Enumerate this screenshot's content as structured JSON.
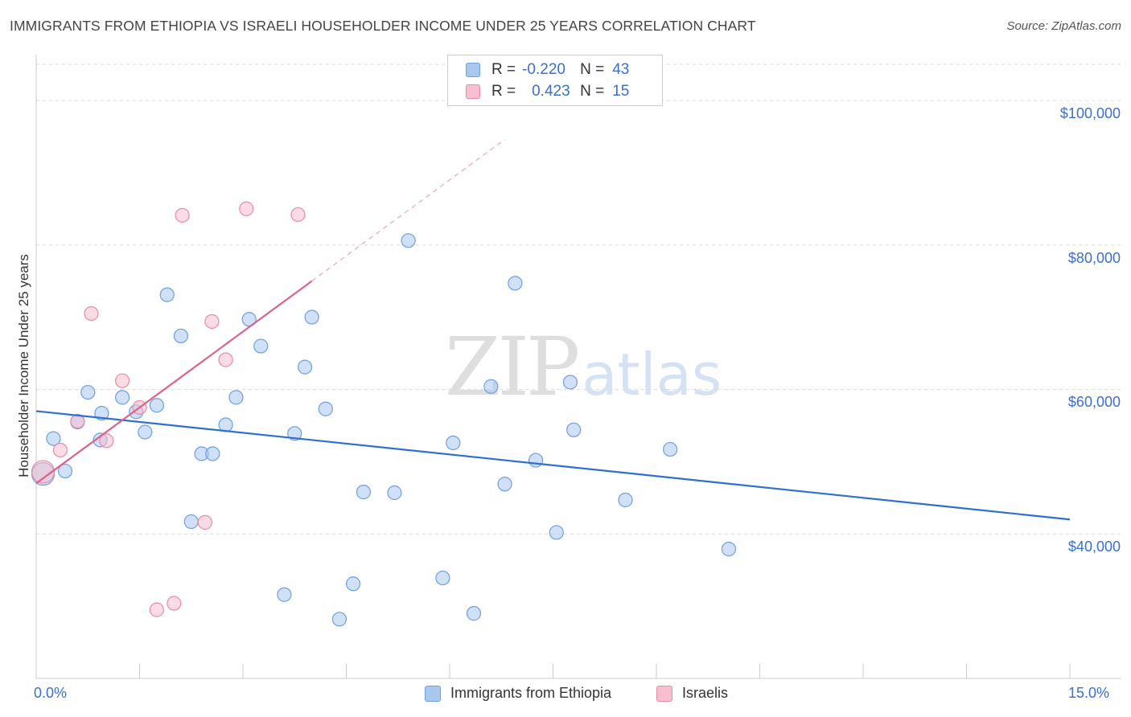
{
  "header": {
    "title": "IMMIGRANTS FROM ETHIOPIA VS ISRAELI HOUSEHOLDER INCOME UNDER 25 YEARS CORRELATION CHART",
    "source": "Source: ZipAtlas.com"
  },
  "watermark": {
    "zip": "ZIP",
    "atlas": "atlas"
  },
  "legend": {
    "rows": [
      {
        "r_label": "R =",
        "r_value": "-0.220",
        "n_label": "N =",
        "n_value": "43",
        "color": "#a9c8f0",
        "border": "#6f9ee0"
      },
      {
        "r_label": "R =",
        "r_value": "0.423",
        "n_label": "N =",
        "n_value": "15",
        "color": "#f7bfd0",
        "border": "#e98aa8"
      }
    ]
  },
  "chart_data": {
    "type": "scatter",
    "ylabel": "Householder Income Under 25 years",
    "xlim": [
      0,
      15
    ],
    "ylim": [
      20000,
      105000
    ],
    "x_tick_labels": [
      "0.0%",
      "15.0%"
    ],
    "y_ticks": [
      {
        "value": 40000,
        "label": "$40,000"
      },
      {
        "value": 60000,
        "label": "$60,000"
      },
      {
        "value": 80000,
        "label": "$80,000"
      },
      {
        "value": 100000,
        "label": "$100,000"
      }
    ],
    "grid": true,
    "legend_position": "top-center",
    "series": [
      {
        "name": "Immigrants from Ethiopia",
        "color": "#a9c8f0",
        "stroke": "#6f9ee0",
        "trend_color": "#2e6fd1",
        "trend": {
          "x0": 0.0,
          "y0": 57000,
          "x1": 15.0,
          "y1": 42000
        },
        "points": [
          [
            0.25,
            53200
          ],
          [
            0.42,
            48700
          ],
          [
            0.6,
            55500
          ],
          [
            0.75,
            59600
          ],
          [
            0.95,
            56700
          ],
          [
            0.93,
            53000
          ],
          [
            1.25,
            58900
          ],
          [
            1.45,
            56900
          ],
          [
            1.58,
            54100
          ],
          [
            1.75,
            57800
          ],
          [
            1.9,
            73100
          ],
          [
            2.1,
            67400
          ],
          [
            2.25,
            41700
          ],
          [
            2.4,
            51100
          ],
          [
            2.56,
            51100
          ],
          [
            2.75,
            55100
          ],
          [
            2.9,
            58900
          ],
          [
            3.09,
            69700
          ],
          [
            3.26,
            66000
          ],
          [
            3.6,
            31600
          ],
          [
            3.75,
            53900
          ],
          [
            3.9,
            63100
          ],
          [
            4.0,
            70000
          ],
          [
            4.2,
            57300
          ],
          [
            4.4,
            28200
          ],
          [
            4.6,
            33100
          ],
          [
            4.75,
            45800
          ],
          [
            5.2,
            45700
          ],
          [
            5.4,
            80600
          ],
          [
            5.9,
            33900
          ],
          [
            6.05,
            52600
          ],
          [
            6.35,
            29000
          ],
          [
            6.6,
            60400
          ],
          [
            6.8,
            46900
          ],
          [
            6.95,
            74700
          ],
          [
            7.25,
            50200
          ],
          [
            7.55,
            40200
          ],
          [
            7.75,
            61000
          ],
          [
            7.8,
            54400
          ],
          [
            8.55,
            44700
          ],
          [
            9.2,
            51700
          ],
          [
            10.05,
            37900
          ],
          [
            0.1,
            48300
          ]
        ]
      },
      {
        "name": "Israelis",
        "color": "#f7bfd0",
        "stroke": "#e98aa8",
        "trend_color": "#e0608c",
        "trend": {
          "x0": 0.0,
          "y0": 47000,
          "x1": 4.0,
          "y1": 75000
        },
        "trend_ext": {
          "x0": 4.0,
          "y0": 75000,
          "x1": 6.8,
          "y1": 94600
        },
        "points": [
          [
            0.1,
            48600
          ],
          [
            0.35,
            51600
          ],
          [
            0.6,
            55600
          ],
          [
            0.8,
            70500
          ],
          [
            1.02,
            52900
          ],
          [
            1.25,
            61200
          ],
          [
            1.5,
            57500
          ],
          [
            1.75,
            29500
          ],
          [
            2.0,
            30400
          ],
          [
            2.12,
            84100
          ],
          [
            2.45,
            41600
          ],
          [
            2.55,
            69400
          ],
          [
            2.75,
            64100
          ],
          [
            3.05,
            85000
          ],
          [
            3.8,
            84200
          ]
        ]
      }
    ]
  },
  "bottom_legend": {
    "items": [
      {
        "label": "Immigrants from Ethiopia",
        "color": "#a9c8f0",
        "border": "#6f9ee0"
      },
      {
        "label": "Israelis",
        "color": "#f7bfd0",
        "border": "#e98aa8"
      }
    ]
  }
}
